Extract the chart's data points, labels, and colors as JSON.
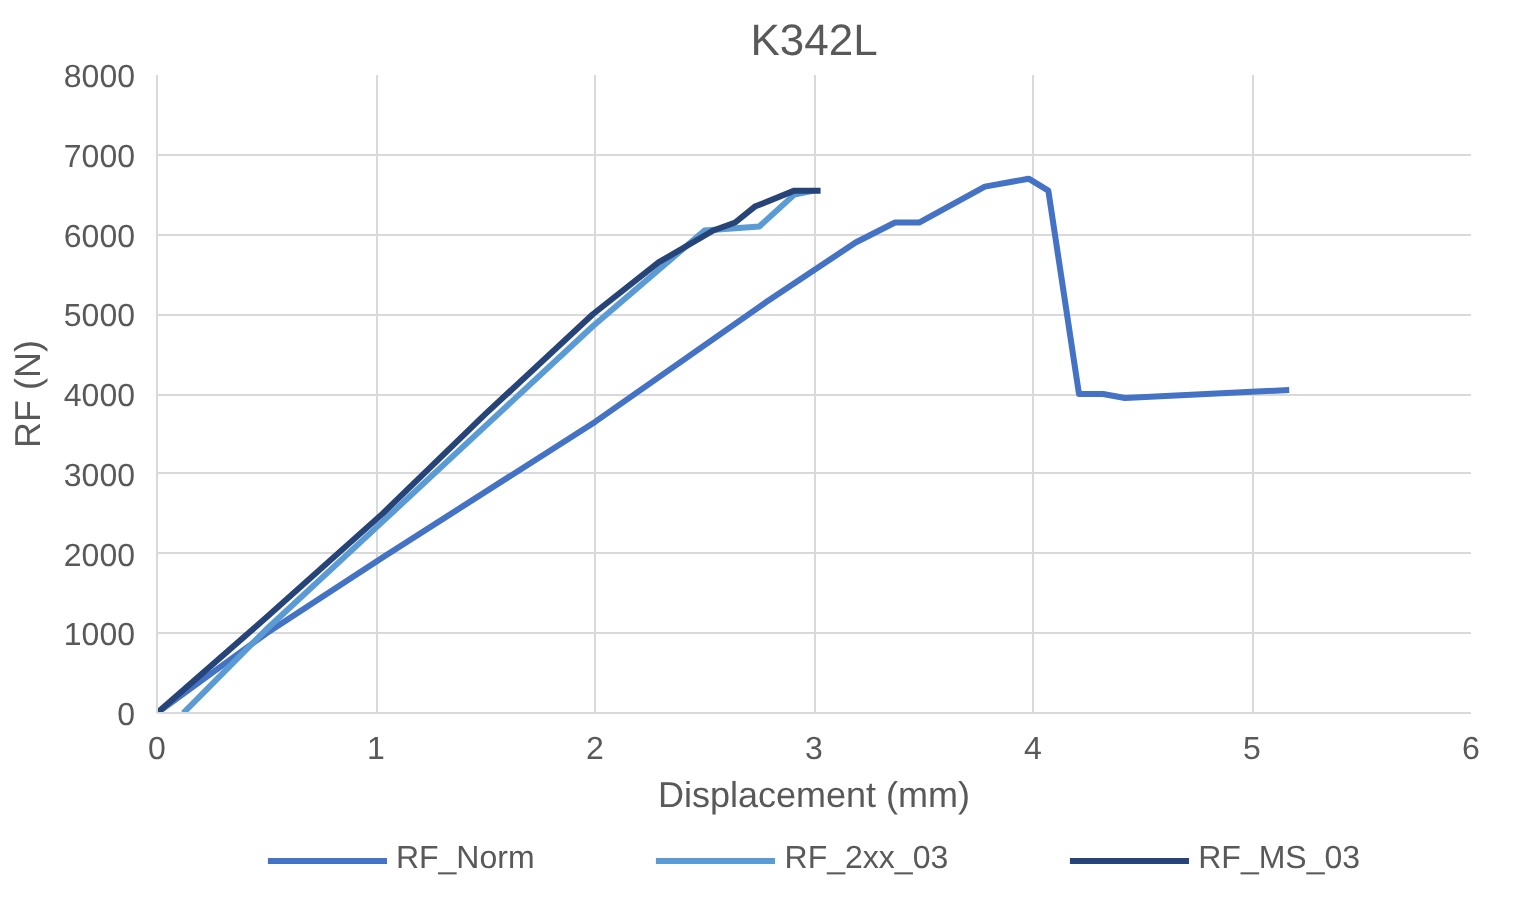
{
  "chart_data": {
    "type": "line",
    "title": "K342L",
    "xlabel": "Displacement (mm)",
    "ylabel": "RF (N)",
    "xlim": [
      0,
      6
    ],
    "xticks": [
      0,
      1,
      2,
      3,
      4,
      5,
      6
    ],
    "ylim": [
      0,
      8000
    ],
    "yticks": [
      0,
      1000,
      2000,
      3000,
      4000,
      5000,
      6000,
      7000,
      8000
    ],
    "grid": true,
    "legend": "bottom",
    "marker": "none",
    "line_style": "solid",
    "series": [
      {
        "name": "RF_Norm",
        "color": "#4472c4",
        "x": [
          0,
          0.3,
          0.5,
          1.03,
          2.0,
          2.78,
          3.19,
          3.37,
          3.48,
          3.78,
          3.98,
          4.07,
          4.21,
          4.32,
          4.42,
          5.17
        ],
        "values": [
          0,
          600,
          1000,
          1950,
          3650,
          5150,
          5900,
          6150,
          6150,
          6600,
          6700,
          6550,
          4000,
          4000,
          3950,
          4050
        ]
      },
      {
        "name": "RF_2xx_03",
        "color": "#5b9bd5",
        "x": [
          0.12,
          0.5,
          1.03,
          1.5,
          1.99,
          2.5,
          2.75,
          2.91,
          3.0
        ],
        "values": [
          0,
          1050,
          2400,
          3600,
          4850,
          6050,
          6100,
          6500,
          6550
        ]
      },
      {
        "name": "RF_MS_03",
        "color": "#264478",
        "x": [
          0,
          0.5,
          1.03,
          1.5,
          1.99,
          2.29,
          2.54,
          2.64,
          2.73,
          2.91,
          3.03
        ],
        "values": [
          0,
          1200,
          2500,
          3750,
          5000,
          5650,
          6050,
          6150,
          6350,
          6550,
          6550
        ]
      }
    ]
  }
}
